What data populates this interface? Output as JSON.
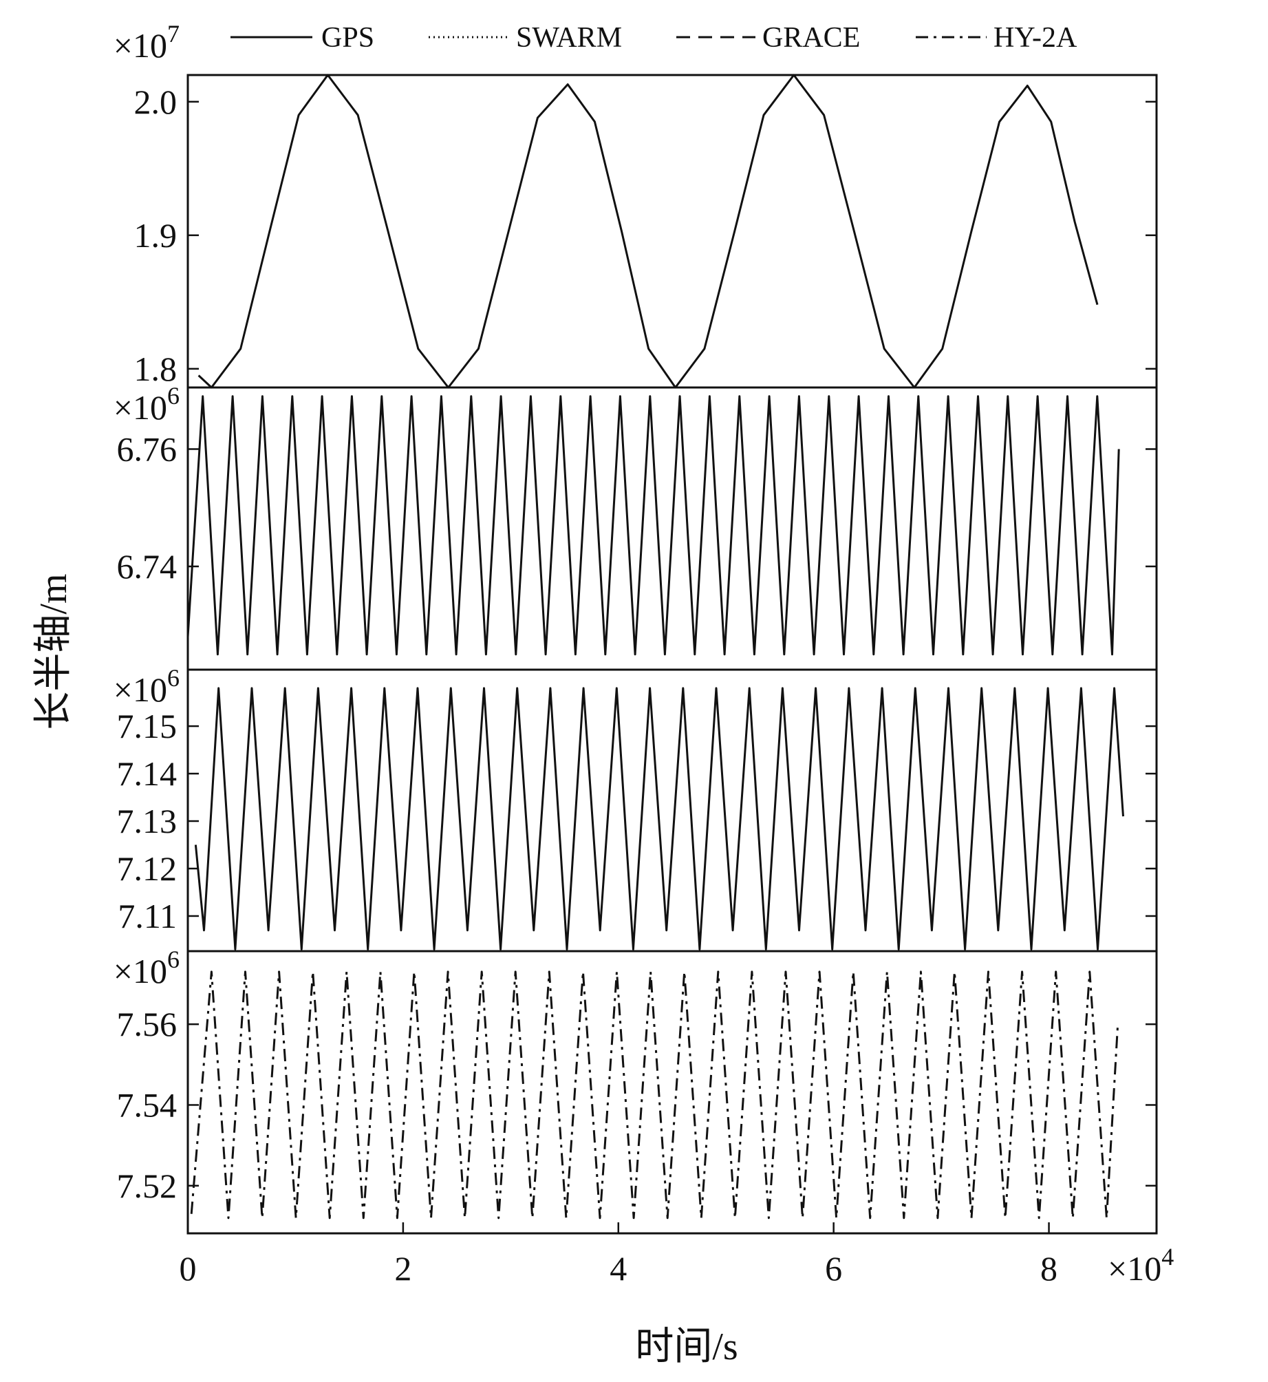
{
  "chart_data": {
    "type": "line",
    "xlabel": "时间/s",
    "ylabel": "长半轴/m",
    "xlim": [
      0,
      9
    ],
    "xticks": [
      0,
      2,
      4,
      6,
      8
    ],
    "x_multiplier": {
      "base": "×10",
      "exponent": "4"
    },
    "panels": [
      {
        "ylim": [
          1.786,
          2.02
        ],
        "yticks": [
          1.8,
          1.9,
          {
            "value": 2.0,
            "label": "2.0"
          }
        ],
        "y_multiplier": {
          "base": "×10",
          "exponent": "7"
        },
        "series": [
          {
            "name": "GPS",
            "color": "#111111",
            "line_style": "solid",
            "legend_style": "solid",
            "x": [
              0.1,
              0.22,
              0.49,
              0.76,
              1.03,
              1.3,
              1.58,
              1.86,
              2.14,
              2.42,
              2.7,
              2.98,
              3.25,
              3.53,
              3.78,
              4.03,
              4.28,
              4.53,
              4.8,
              5.08,
              5.35,
              5.63,
              5.91,
              6.19,
              6.47,
              6.75,
              7.01,
              7.28,
              7.54,
              7.8,
              8.02,
              8.24,
              8.45
            ],
            "values": [
              1.795,
              1.786,
              1.815,
              1.903,
              1.99,
              2.02,
              1.99,
              1.903,
              1.815,
              1.786,
              1.815,
              1.903,
              1.988,
              2.013,
              1.985,
              1.903,
              1.815,
              1.786,
              1.815,
              1.903,
              1.99,
              2.02,
              1.99,
              1.903,
              1.815,
              1.786,
              1.815,
              1.903,
              1.985,
              2.012,
              1.985,
              1.91,
              1.848
            ]
          }
        ]
      },
      {
        "ylim": [
          6.7224,
          6.7705
        ],
        "yticks": [
          6.74,
          6.76
        ],
        "y_multiplier": {
          "base": "×10",
          "exponent": "6"
        },
        "series": [
          {
            "name": "SWARM",
            "color": "#111111",
            "line_style": "solid",
            "legend_style": "dotted",
            "x": [
              0,
              0.139,
              0.2775,
              0.416,
              0.5545,
              0.693,
              0.8315,
              0.97,
              1.1085,
              1.247,
              1.3855,
              1.524,
              1.6625,
              1.801,
              1.9395,
              2.078,
              2.2165,
              2.355,
              2.4935,
              2.632,
              2.7705,
              2.909,
              3.0475,
              3.186,
              3.3245,
              3.463,
              3.6015,
              3.74,
              3.8785,
              4.017,
              4.1555,
              4.294,
              4.4325,
              4.571,
              4.7095,
              4.848,
              4.9865,
              5.125,
              5.2635,
              5.402,
              5.5405,
              5.679,
              5.8175,
              5.956,
              6.0945,
              6.233,
              6.3715,
              6.51,
              6.6485,
              6.787,
              6.9255,
              7.064,
              7.2025,
              7.341,
              7.4795,
              7.618,
              7.7565,
              7.895,
              8.0335,
              8.172,
              8.3105,
              8.449,
              8.5875,
              8.65
            ],
            "values": [
              6.728,
              6.769,
              6.725,
              6.769,
              6.725,
              6.769,
              6.725,
              6.769,
              6.725,
              6.769,
              6.725,
              6.769,
              6.725,
              6.769,
              6.725,
              6.769,
              6.725,
              6.769,
              6.725,
              6.769,
              6.725,
              6.769,
              6.725,
              6.769,
              6.725,
              6.769,
              6.725,
              6.769,
              6.725,
              6.769,
              6.725,
              6.769,
              6.725,
              6.769,
              6.725,
              6.769,
              6.725,
              6.769,
              6.725,
              6.769,
              6.725,
              6.769,
              6.725,
              6.769,
              6.725,
              6.769,
              6.725,
              6.769,
              6.725,
              6.769,
              6.725,
              6.769,
              6.725,
              6.769,
              6.725,
              6.769,
              6.725,
              6.769,
              6.725,
              6.769,
              6.725,
              6.769,
              6.725,
              6.76
            ]
          }
        ]
      },
      {
        "ylim": [
          7.1026,
          7.1619
        ],
        "yticks": [
          7.11,
          7.12,
          7.13,
          7.14,
          7.15
        ],
        "y_multiplier": {
          "base": "×10",
          "exponent": "6"
        },
        "series": [
          {
            "name": "GRACE",
            "color": "#111111",
            "line_style": "solid",
            "legend_style": "dashed",
            "x": [
              0.073,
              0.15,
              0.286,
              0.4401,
              0.5942,
              0.7483,
              0.9024,
              1.0565,
              1.2106,
              1.3647,
              1.5188,
              1.6729,
              1.827,
              1.9811,
              2.1352,
              2.2893,
              2.4434,
              2.5975,
              2.7516,
              2.9057,
              3.0598,
              3.2139,
              3.368,
              3.5221,
              3.6762,
              3.8303,
              3.9844,
              4.1385,
              4.2926,
              4.4467,
              4.6008,
              4.7549,
              4.909,
              5.0631,
              5.2172,
              5.3713,
              5.5254,
              5.6795,
              5.8336,
              5.9877,
              6.1418,
              6.2959,
              6.45,
              6.6041,
              6.7582,
              6.9123,
              7.0664,
              7.2205,
              7.3746,
              7.5287,
              7.6828,
              7.8369,
              7.991,
              8.1451,
              8.2992,
              8.4533,
              8.6074,
              8.69
            ],
            "values": [
              7.125,
              7.107,
              7.158,
              7.103,
              7.158,
              7.107,
              7.158,
              7.103,
              7.158,
              7.107,
              7.158,
              7.103,
              7.158,
              7.107,
              7.158,
              7.103,
              7.158,
              7.107,
              7.158,
              7.103,
              7.158,
              7.107,
              7.158,
              7.103,
              7.158,
              7.107,
              7.158,
              7.103,
              7.158,
              7.107,
              7.158,
              7.103,
              7.158,
              7.107,
              7.158,
              7.103,
              7.158,
              7.107,
              7.158,
              7.103,
              7.158,
              7.107,
              7.158,
              7.103,
              7.158,
              7.107,
              7.158,
              7.103,
              7.158,
              7.107,
              7.158,
              7.103,
              7.158,
              7.107,
              7.158,
              7.103,
              7.158,
              7.131
            ]
          }
        ]
      },
      {
        "ylim": [
          7.5082,
          7.5781
        ],
        "yticks": [
          7.52,
          7.54,
          7.56
        ],
        "y_multiplier": {
          "base": "×10",
          "exponent": "6"
        },
        "series": [
          {
            "name": "HY-2A",
            "color": "#111111",
            "line_style": "dashdot",
            "legend_style": "dashdot",
            "x": [
              0.033,
              0.22,
              0.3769,
              0.5338,
              0.6907,
              0.8476,
              1.0045,
              1.1614,
              1.3183,
              1.4752,
              1.6321,
              1.789,
              1.9459,
              2.1028,
              2.2597,
              2.4166,
              2.5735,
              2.7304,
              2.8873,
              3.0442,
              3.2011,
              3.358,
              3.5149,
              3.6718,
              3.8287,
              3.9856,
              4.1425,
              4.2994,
              4.4563,
              4.6132,
              4.7701,
              4.927,
              5.0839,
              5.2408,
              5.3977,
              5.5546,
              5.7115,
              5.8684,
              6.0253,
              6.1822,
              6.3391,
              6.496,
              6.6529,
              6.8098,
              6.9667,
              7.1236,
              7.2805,
              7.4374,
              7.5943,
              7.7512,
              7.9081,
              8.065,
              8.2219,
              8.3788,
              8.5357,
              8.64
            ],
            "values": [
              7.513,
              7.573,
              7.512,
              7.573,
              7.512,
              7.573,
              7.512,
              7.573,
              7.512,
              7.573,
              7.512,
              7.573,
              7.512,
              7.573,
              7.512,
              7.573,
              7.512,
              7.573,
              7.512,
              7.573,
              7.512,
              7.573,
              7.512,
              7.573,
              7.512,
              7.573,
              7.512,
              7.573,
              7.512,
              7.573,
              7.512,
              7.573,
              7.512,
              7.573,
              7.512,
              7.573,
              7.512,
              7.573,
              7.512,
              7.573,
              7.512,
              7.573,
              7.512,
              7.573,
              7.512,
              7.573,
              7.512,
              7.573,
              7.512,
              7.573,
              7.512,
              7.573,
              7.512,
              7.573,
              7.512,
              7.56
            ]
          }
        ]
      }
    ]
  }
}
